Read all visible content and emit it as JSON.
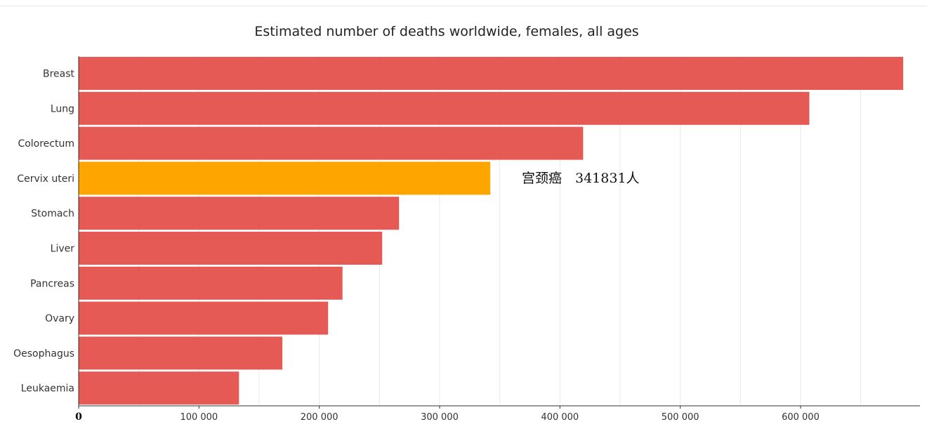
{
  "chart_data": {
    "type": "bar",
    "orientation": "horizontal",
    "title": "Estimated number of deaths worldwide, females, all ages",
    "categories": [
      "Breast",
      "Lung",
      "Colorectum",
      "Cervix uteri",
      "Stomach",
      "Liver",
      "Pancreas",
      "Ovary",
      "Oesophagus",
      "Leukaemia"
    ],
    "values": [
      685000,
      607000,
      419000,
      341831,
      266000,
      252000,
      219000,
      207000,
      169000,
      133000
    ],
    "bar_color": "#e65a55",
    "highlight": {
      "category": "Cervix uteri",
      "color": "#ffa500",
      "label": "宫颈癌　341831人"
    },
    "xlim": [
      0,
      700000
    ],
    "x_ticks": [
      0,
      100000,
      200000,
      300000,
      400000,
      500000,
      600000
    ],
    "x_tick_labels": [
      "0",
      "100 000",
      "200 000",
      "300 000",
      "400 000",
      "500 000",
      "600 000"
    ],
    "grid": true,
    "legend": "none"
  }
}
